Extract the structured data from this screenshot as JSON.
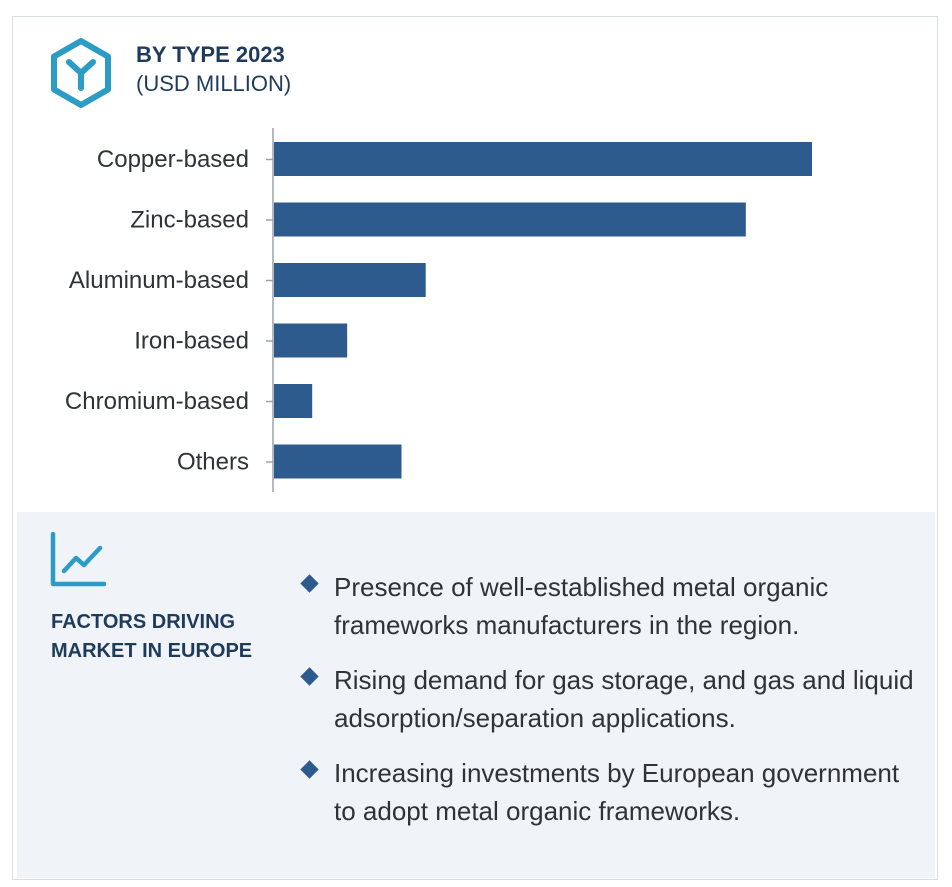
{
  "header": {
    "title": "BY  TYPE 2023",
    "subtitle": "(USD MILLION)",
    "icon": "hexagon-y-icon"
  },
  "chart_data": {
    "type": "bar",
    "orientation": "horizontal",
    "title": "BY  TYPE 2023",
    "subtitle": "(USD MILLION)",
    "categories": [
      "Copper-based",
      "Zinc-based",
      "Aluminum-based",
      "Iron-based",
      "Chromium-based",
      "Others"
    ],
    "values": [
      100,
      87.7,
      28.2,
      13.6,
      7.1,
      23.7
    ],
    "value_axis_labels": false,
    "grid": false,
    "bar_color": "#2d5b8e"
  },
  "factors": {
    "icon": "trend-chart-icon",
    "title": "FACTORS DRIVING MARKET IN EUROPE",
    "items": [
      "Presence of well-established metal organic frameworks manufacturers in the region.",
      "Rising demand for gas storage, and gas and liquid adsorption/separation applications.",
      "Increasing investments by European government to adopt metal organic frameworks."
    ]
  },
  "colors": {
    "accent": "#2d9cc5",
    "bar": "#2d5b8e",
    "heading": "#1f3b5c",
    "panel": "#f0f3f7"
  }
}
